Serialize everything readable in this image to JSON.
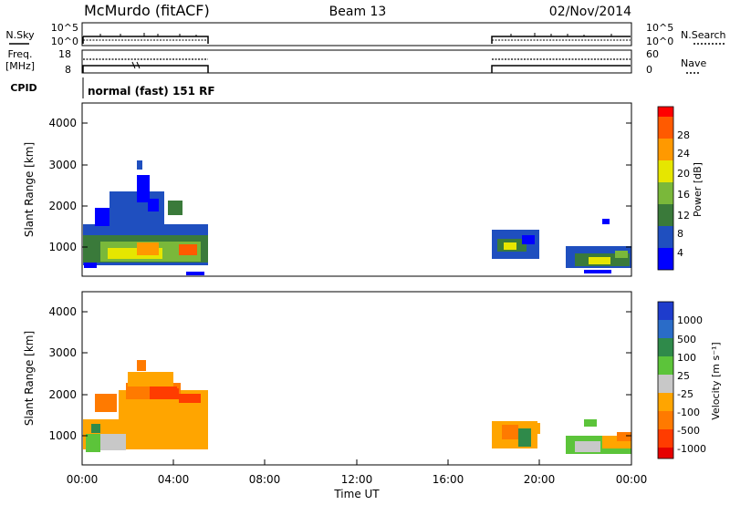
{
  "header": {
    "station": "McMurdo (fitACF)",
    "beam": "Beam 13",
    "date": "02/Nov/2014"
  },
  "top_panels": {
    "nsky_label": "N.Sky",
    "nsky_ticks": [
      "10^5",
      "10^0"
    ],
    "nsearch_label": "N.Search",
    "nsearch_ticks": [
      "10^5",
      "10^0"
    ],
    "freq_label_1": "Freq.",
    "freq_label_2": "[MHz]",
    "freq_ticks": [
      "18",
      "8"
    ],
    "nave_label": "Nave",
    "nave_ticks": [
      "60",
      "0"
    ],
    "cpid_label": "CPID",
    "cpid_text": "normal (fast) 151 RF"
  },
  "axes": {
    "x_label": "Time UT",
    "x_ticks": [
      "00:00",
      "04:00",
      "08:00",
      "12:00",
      "16:00",
      "20:00",
      "00:00"
    ],
    "y_label": "Slant Range [km]",
    "y_ticks": [
      "4000",
      "3000",
      "2000",
      "1000"
    ]
  },
  "colorbars": {
    "power": {
      "label": "Power [dB]",
      "ticks": [
        "28",
        "24",
        "20",
        "16",
        "12",
        "8",
        "4"
      ],
      "colors": [
        "#0000ff",
        "#1f4fbf",
        "#3a7a3a",
        "#7ab83a",
        "#e6e600",
        "#ff9900",
        "#ff5a00",
        "#ff0000"
      ]
    },
    "velocity": {
      "label": "Velocity [m s⁻¹]",
      "ticks": [
        "1000",
        "500",
        "100",
        "25",
        "-25",
        "-100",
        "-500",
        "-1000"
      ],
      "colors": [
        "#1e3ccc",
        "#2a6cc8",
        "#2f8a4a",
        "#5cc43a",
        "#c8c8c8",
        "#ffa500",
        "#ff7a00",
        "#ff3c00",
        "#e60000"
      ]
    }
  },
  "chart_data": [
    {
      "type": "heatmap",
      "title": "Power",
      "xlabel": "Time UT",
      "ylabel": "Slant Range [km]",
      "xlim": [
        "00:00",
        "24:00"
      ],
      "ylim": [
        180,
        4500
      ],
      "colorbar_label": "Power [dB]",
      "colorbar_range": [
        0,
        32
      ],
      "regions": [
        {
          "t_start": "00:00",
          "t_end": "05:30",
          "r_min": 500,
          "r_max": 2200,
          "dominant": "4-20 dB, peaks near 24 dB around 800 km"
        },
        {
          "t_start": "17:50",
          "t_end": "19:40",
          "r_min": 600,
          "r_max": 1300,
          "dominant": "4-20 dB"
        },
        {
          "t_start": "21:00",
          "t_end": "24:00",
          "r_min": 500,
          "r_max": 1300,
          "dominant": "4-20 dB"
        }
      ]
    },
    {
      "type": "heatmap",
      "title": "Velocity",
      "xlabel": "Time UT",
      "ylabel": "Slant Range [km]",
      "xlim": [
        "00:00",
        "24:00"
      ],
      "ylim": [
        180,
        4500
      ],
      "colorbar_label": "Velocity [m s⁻¹]",
      "colorbar_range": [
        -1000,
        1000
      ],
      "regions": [
        {
          "t_start": "00:00",
          "t_end": "05:30",
          "r_min": 500,
          "r_max": 2200,
          "dominant": "-25 to -500 m/s (orange), ground scatter near 1000 km before 02:00"
        },
        {
          "t_start": "17:50",
          "t_end": "19:40",
          "r_min": 600,
          "r_max": 1300,
          "dominant": "-100 to -500 m/s (orange)"
        },
        {
          "t_start": "21:00",
          "t_end": "24:00",
          "r_min": 500,
          "r_max": 1300,
          "dominant": "mixed green/orange, +100 to -100 m/s"
        }
      ]
    }
  ]
}
